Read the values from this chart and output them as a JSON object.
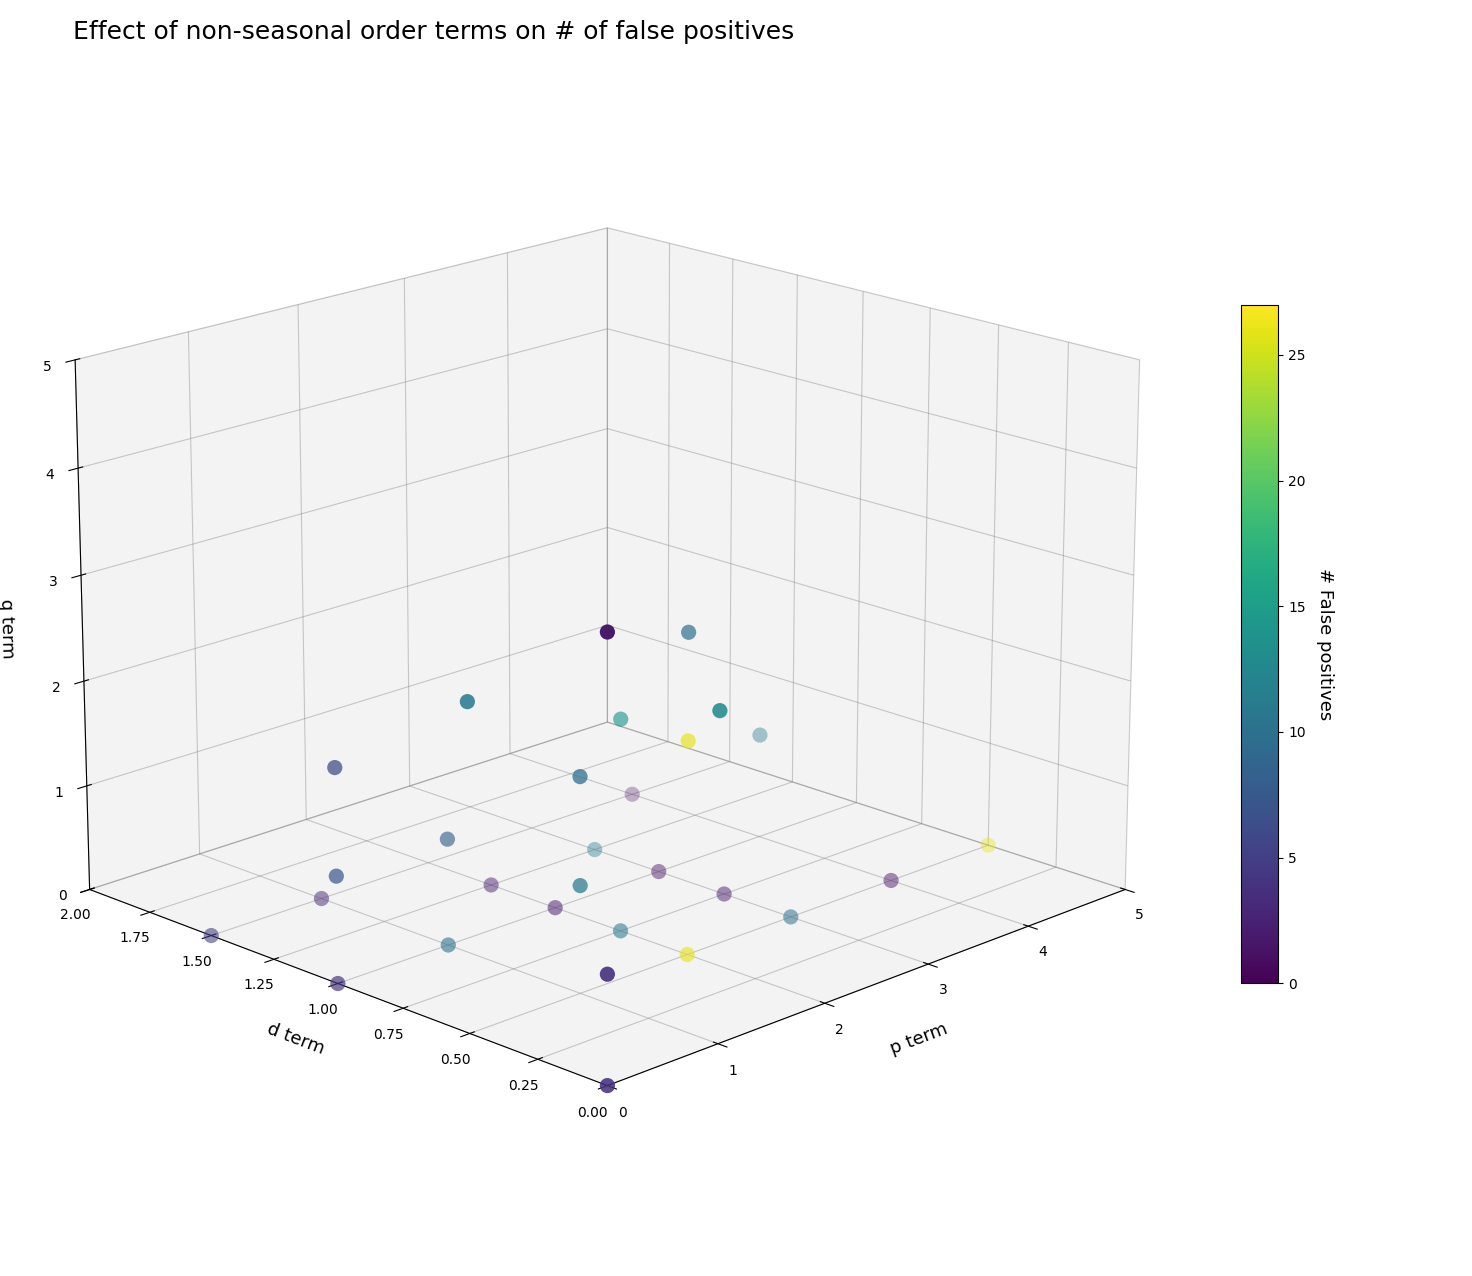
{
  "title": "Effect of non-seasonal order terms on # of false positives",
  "xlabel": "p term",
  "ylabel": "d term",
  "zlabel": "q term",
  "colorbar_label": "# False positives",
  "colormap": "viridis",
  "points": [
    {
      "p": 0,
      "d": 0.0,
      "q": 4,
      "fp": 2
    },
    {
      "p": 1,
      "d": 0.0,
      "q": 3,
      "fp": 13
    },
    {
      "p": 0,
      "d": 0.5,
      "q": 3,
      "fp": 11
    },
    {
      "p": 2,
      "d": 0.5,
      "q": 3,
      "fp": 10
    },
    {
      "p": 0,
      "d": 0.0,
      "q": 1,
      "fp": 4
    },
    {
      "p": 0,
      "d": 1.0,
      "q": 2,
      "fp": 6
    },
    {
      "p": 1,
      "d": 0.5,
      "q": 2,
      "fp": 10
    },
    {
      "p": 2,
      "d": 0.5,
      "q": 2,
      "fp": 26
    },
    {
      "p": 2,
      "d": 0.75,
      "q": 2,
      "fp": 14
    },
    {
      "p": 0,
      "d": 1.0,
      "q": 1,
      "fp": 7
    },
    {
      "p": 1,
      "d": 0.5,
      "q": 1,
      "fp": 11
    },
    {
      "p": 1,
      "d": 1.0,
      "q": 1,
      "fp": 8
    },
    {
      "p": 4,
      "d": 1.0,
      "q": 1,
      "fp": 11
    },
    {
      "p": 0,
      "d": 0.0,
      "q": 0,
      "fp": 4
    },
    {
      "p": 0,
      "d": 1.0,
      "q": 0,
      "fp": 4
    },
    {
      "p": 0,
      "d": 1.5,
      "q": 0,
      "fp": 5
    },
    {
      "p": 1,
      "d": 1.0,
      "q": 0,
      "fp": 10
    },
    {
      "p": 1,
      "d": 1.5,
      "q": 0,
      "fp": 3
    },
    {
      "p": 2,
      "d": 0.5,
      "q": 0,
      "fp": 26
    },
    {
      "p": 2,
      "d": 0.75,
      "q": 0,
      "fp": 11
    },
    {
      "p": 2,
      "d": 1.0,
      "q": 0,
      "fp": 2
    },
    {
      "p": 2,
      "d": 1.25,
      "q": 0,
      "fp": 2
    },
    {
      "p": 3,
      "d": 0.5,
      "q": 0,
      "fp": 10
    },
    {
      "p": 3,
      "d": 0.75,
      "q": 0,
      "fp": 2
    },
    {
      "p": 3,
      "d": 1.0,
      "q": 0,
      "fp": 1
    },
    {
      "p": 3,
      "d": 1.25,
      "q": 0,
      "fp": 11
    },
    {
      "p": 4,
      "d": 0.5,
      "q": 0,
      "fp": 1
    },
    {
      "p": 4,
      "d": 1.5,
      "q": 0,
      "fp": 1
    },
    {
      "p": 5,
      "d": 0.5,
      "q": 0,
      "fp": 26
    }
  ],
  "xlim": [
    0,
    5
  ],
  "ylim": [
    0.0,
    2.0
  ],
  "zlim": [
    0,
    5
  ],
  "xticks": [
    0,
    1,
    2,
    3,
    4,
    5
  ],
  "yticks": [
    0.0,
    0.25,
    0.5,
    0.75,
    1.0,
    1.25,
    1.5,
    1.75,
    2.0
  ],
  "zticks": [
    0,
    1,
    2,
    3,
    4,
    5
  ],
  "marker_size": 120,
  "figsize": [
    14.72,
    12.76
  ],
  "dpi": 100,
  "title_fontsize": 18,
  "axis_label_fontsize": 13,
  "elev": 18,
  "azim": 225,
  "pane_color": "#ebebeb",
  "vmin": 0,
  "vmax": 27,
  "colorbar_ticks": [
    0,
    5,
    10,
    15,
    20,
    25
  ]
}
